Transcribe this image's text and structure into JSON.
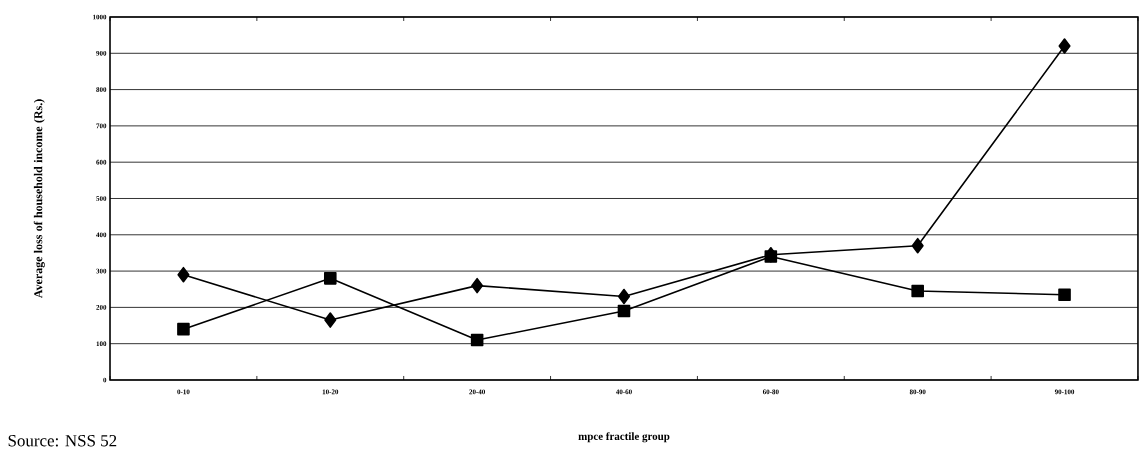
{
  "chart_data": {
    "type": "line",
    "xlabel": "mpce fractile group",
    "ylabel": "Average loss of household income (Rs.)",
    "categories": [
      "0-10",
      "10-20",
      "20-40",
      "40-60",
      "60-80",
      "80-90",
      "90-100"
    ],
    "series": [
      {
        "color": "#000000",
        "marker": "diamond",
        "values": [
          290,
          165,
          260,
          230,
          345,
          370,
          920
        ]
      },
      {
        "color": "#000000",
        "marker": "square",
        "values": [
          140,
          280,
          110,
          190,
          340,
          245,
          235
        ]
      }
    ],
    "ylim": [
      0,
      1000
    ],
    "yticks": [
      0,
      100,
      200,
      300,
      400,
      500,
      600,
      700,
      800,
      900,
      1000
    ],
    "grid": "y",
    "line_style": "solid",
    "annotations": [
      "Source: NSS 52"
    ]
  }
}
